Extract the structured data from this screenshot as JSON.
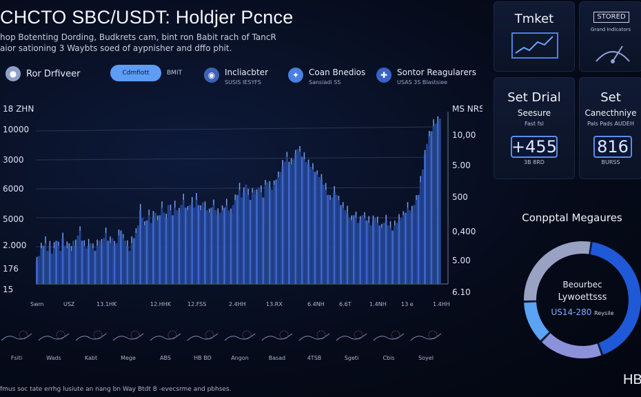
{
  "header": {
    "title": "CHCTO SBC/USDT: Holdjer Pcnce",
    "subtitle_line1": "hop Botenting Dording, Budkrets cam, bint ron Babit rach of TancR",
    "subtitle_line2": "aior sationing 3 Waybts soed of aypnisher and dffo phit."
  },
  "toolbar": {
    "user_label": "Ror Drfiveer",
    "button_label": "Cdmfiott",
    "button_side": "BMIT",
    "items": [
      {
        "label": "Incliacbter",
        "sub": "SUSIS IESYFS"
      },
      {
        "label": "Coan Bnedios",
        "sub": "Sansiadi SS"
      },
      {
        "label": "Sontor Reagularers",
        "sub": "USAS 3S Blastsiee"
      }
    ]
  },
  "chart_data": {
    "type": "bar",
    "y_left_ticks": [
      "18 ZHN",
      "10000",
      "3000",
      "6000",
      "5000",
      "2.000",
      "176",
      "15"
    ],
    "y_right_ticks": [
      "MS NRS",
      "10,00",
      "5.00",
      "500",
      "0,400",
      "5.00",
      "6.10"
    ],
    "x_ticks": [
      "Swm",
      "USZ",
      "13.1HK",
      "12.HHK",
      "12.FSS",
      "2.4HH",
      "13.RX",
      "6.4NH",
      "6.6T",
      "1.4NH",
      "13 e",
      "1.4HH"
    ],
    "values": [
      18,
      22,
      28,
      30,
      32,
      26,
      30,
      24,
      28,
      34,
      30,
      26,
      36,
      30,
      28,
      32,
      26,
      34,
      30,
      38,
      42,
      34,
      30,
      28,
      30,
      32,
      28,
      26,
      30,
      34,
      32,
      36,
      40,
      34,
      32,
      36,
      30,
      32,
      38,
      42,
      36,
      34,
      30,
      26,
      32,
      36,
      40,
      46,
      58,
      52,
      46,
      50,
      54,
      48,
      52,
      56,
      50,
      54,
      60,
      56,
      52,
      62,
      58,
      54,
      60,
      58,
      56,
      62,
      66,
      60,
      58,
      62,
      64,
      60,
      66,
      62,
      58,
      64,
      60,
      58,
      56,
      60,
      62,
      58,
      54,
      56,
      58,
      60,
      62,
      58,
      56,
      62,
      66,
      70,
      74,
      68,
      72,
      78,
      70,
      66,
      72,
      74,
      70,
      76,
      72,
      68,
      78,
      80,
      76,
      74,
      78,
      82,
      84,
      88,
      92,
      96,
      100,
      96,
      94,
      98,
      102,
      106,
      104,
      100,
      98,
      96,
      94,
      92,
      90,
      88,
      86,
      84,
      82,
      78,
      74,
      70,
      66,
      68,
      72,
      70,
      66,
      62,
      60,
      58,
      56,
      52,
      50,
      54,
      52,
      48,
      50,
      54,
      52,
      50,
      48,
      46,
      50,
      52,
      48,
      46,
      44,
      48,
      50,
      46,
      44,
      42,
      46,
      48,
      50,
      52,
      54,
      56,
      60,
      58,
      56,
      62,
      66,
      70,
      80,
      90,
      102,
      110,
      116,
      120,
      124,
      126,
      128,
      130
    ]
  },
  "cards": {
    "ticket": {
      "title": "Tmket"
    },
    "stored": {
      "title": "STORED",
      "sub": "Grand Indicators"
    },
    "set_drial": {
      "title": "Set Drial",
      "line2": "Seesure",
      "line3": "Fast fsl",
      "value": "+455",
      "value_sub": "3B 8RD"
    },
    "set": {
      "title": "Set",
      "line2": "Canecthniye",
      "line3": "Pals Pads AUDEH",
      "value": "816",
      "value_sub": "BURSS"
    }
  },
  "donut": {
    "title": "Conpptal Megaures",
    "line1": "Beourbec",
    "line2": "Lywoettsss",
    "value": "US14-280",
    "value_suffix": "Reysile",
    "segments": [
      {
        "pct": 0.42,
        "color": "#1f59d8"
      },
      {
        "pct": 0.18,
        "color": "#8c92d9"
      },
      {
        "pct": 0.12,
        "color": "#5aa3f5"
      },
      {
        "pct": 0.28,
        "color": "#9aa2c4"
      }
    ]
  },
  "minis": [
    "Fsiti",
    "Wads",
    "Kabt",
    "Mege",
    "ABS",
    "HB BD",
    "Angon",
    "Basad",
    "4TSB",
    "Sgeti",
    "Cbis",
    "Soyel"
  ],
  "footer": "fmus soc tate errhg lusiute an nang bn Way Btdt B -evecsrme and pbhses.",
  "brand": "HB"
}
